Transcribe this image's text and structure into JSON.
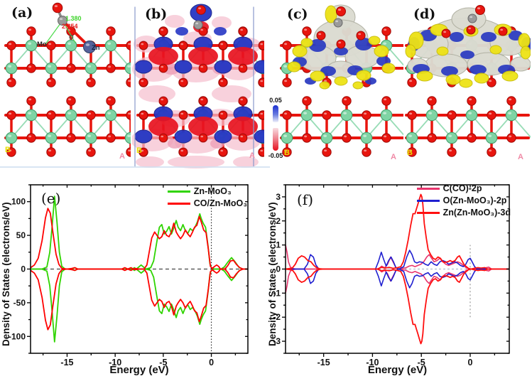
{
  "panels": {
    "a": {
      "label": "(a)",
      "atoms": {
        "mo": "Mo",
        "zn": "Zn",
        "o": "O"
      },
      "bonds": {
        "c_o": "1.380",
        "zn_c": "2.354"
      },
      "corners": {
        "b": "B",
        "a": "A"
      }
    },
    "b": {
      "label": "(b)",
      "colorbar": {
        "max": "0.05",
        "min": "-0.05"
      },
      "corners": {
        "b": "B",
        "a": "A"
      }
    },
    "c": {
      "label": "(c)",
      "corners": {
        "b": "B",
        "a": "A"
      }
    },
    "d": {
      "label": "(d)",
      "corners": {
        "b": "B",
        "a": "A"
      }
    }
  },
  "palette": {
    "mo_atom": "#7fd4a4",
    "mo_stroke": "#3f9e6b",
    "o_atom": "#e8150e",
    "o_stroke": "#a00a06",
    "c_atom": "#9a9a9a",
    "c_stroke": "#686868",
    "zn_atom": "#55639b",
    "zn_stroke": "#313f63",
    "charge_accumulation": "#2636c4",
    "charge_depletion": "#e81320",
    "contour_pink": "#f5bfcf",
    "isosurface_gray": "#dbdbd1",
    "isosurface_yellow": "#eee316",
    "isosurface_blue": "#2838c0",
    "frame_blue": "#8899cc"
  },
  "chart_data": [
    {
      "id": "e",
      "type": "line",
      "panel_label": "(e)",
      "xlabel": "Energy (eV)",
      "ylabel": "Density of States (electrons/eV)",
      "xlim": [
        -18.8,
        3.8
      ],
      "ylim": [
        -125,
        125
      ],
      "xticks": [
        -15,
        -10,
        -5,
        0
      ],
      "xminor_step": 2.5,
      "yticks": [
        -100,
        -50,
        0,
        50,
        100
      ],
      "yminor_step": 25,
      "grid": false,
      "legend_position": "top-right",
      "mirrored_spin": true,
      "ref_lines": [
        {
          "orient": "h",
          "at": 0,
          "from": -17.4,
          "to": 3.6,
          "dash": "5 4",
          "color": "#222222",
          "width": 1
        },
        {
          "orient": "v",
          "at": 0,
          "from": -122,
          "to": 122,
          "dash": "1.5 2.5",
          "color": "#222222",
          "width": 1.2
        }
      ],
      "series": [
        {
          "name": "Zn-MoO₃",
          "color": "#2fd400",
          "width": 1.8,
          "x": [
            -18.8,
            -17.6,
            -17.1,
            -16.8,
            -16.55,
            -16.3,
            -16.05,
            -15.8,
            -15.55,
            -15.2,
            -14.5,
            -14.2,
            -13.9,
            -13.0,
            -9.3,
            -9.0,
            -8.7,
            -8.2,
            -8.0,
            -7.8,
            -7.55,
            -7.3,
            -7.05,
            -6.8,
            -6.3,
            -6.0,
            -5.7,
            -5.4,
            -5.15,
            -4.9,
            -4.65,
            -4.4,
            -4.15,
            -3.9,
            -3.65,
            -3.45,
            -3.2,
            -2.95,
            -2.7,
            -2.45,
            -2.2,
            -1.95,
            -1.7,
            -1.45,
            -1.2,
            -1.05,
            -0.85,
            -0.6,
            -0.35,
            -0.15,
            0.0,
            0.3,
            1.0,
            1.35,
            1.7,
            2.1,
            2.5,
            2.85,
            3.2,
            3.8
          ],
          "y": [
            0,
            0,
            3,
            25,
            65,
            108,
            70,
            25,
            4,
            0,
            0,
            2,
            0,
            0,
            0,
            1.5,
            0,
            0,
            2,
            0,
            3,
            6,
            3,
            0,
            2,
            12,
            38,
            62,
            66,
            52,
            56,
            63,
            52,
            61,
            72,
            62,
            57,
            66,
            57,
            53,
            60,
            57,
            62,
            70,
            82,
            75,
            68,
            62,
            35,
            8,
            2,
            0,
            0,
            3,
            10,
            17,
            10,
            3,
            0,
            0
          ]
        },
        {
          "name": "CO/Zn-MoO₃",
          "color": "#ff0000",
          "width": 1.8,
          "x": [
            -18.8,
            -18.4,
            -18.0,
            -17.6,
            -17.25,
            -17.0,
            -16.75,
            -16.45,
            -16.15,
            -15.85,
            -15.55,
            -15.0,
            -14.5,
            -14.2,
            -13.9,
            -13.0,
            -9.3,
            -9.0,
            -8.7,
            -8.35,
            -8.1,
            -7.9,
            -7.5,
            -7.0,
            -6.7,
            -6.45,
            -6.2,
            -5.9,
            -5.65,
            -5.4,
            -5.15,
            -4.9,
            -4.65,
            -4.4,
            -4.15,
            -3.9,
            -3.65,
            -3.45,
            -3.2,
            -2.95,
            -2.7,
            -2.45,
            -2.2,
            -1.95,
            -1.75,
            -1.5,
            -1.25,
            -1.05,
            -0.8,
            -0.55,
            -0.3,
            -0.1,
            0.1,
            0.35,
            0.55,
            0.75,
            0.95,
            1.4,
            1.7,
            2.0,
            2.3,
            2.6,
            2.95,
            3.3,
            3.8
          ],
          "y": [
            2,
            6,
            16,
            42,
            76,
            90,
            83,
            52,
            22,
            7,
            1,
            0,
            1,
            2,
            0,
            0,
            0,
            2,
            0,
            2,
            0,
            1,
            0,
            0,
            6,
            26,
            46,
            55,
            50,
            45,
            48,
            57,
            50,
            48,
            55,
            68,
            55,
            50,
            45,
            50,
            58,
            52,
            48,
            55,
            62,
            65,
            78,
            70,
            58,
            54,
            28,
            4,
            1,
            4,
            6,
            4,
            0,
            0,
            5,
            12,
            13,
            7,
            2,
            0,
            0
          ]
        }
      ]
    },
    {
      "id": "f",
      "type": "line",
      "panel_label": "(f)",
      "xlabel": "Energy (eV)",
      "ylabel": "Density of States (electrons/eV)",
      "xlim": [
        -18.9,
        4.0
      ],
      "ylim": [
        -3.5,
        3.5
      ],
      "xticks": [
        -15,
        -10,
        -5,
        0
      ],
      "xminor_step": 2.5,
      "yticks": [
        -3,
        -2,
        -1,
        0,
        1,
        2,
        3
      ],
      "yminor_step": 0.5,
      "grid": false,
      "legend_position": "top-right",
      "mirrored_spin": true,
      "ref_lines": [
        {
          "orient": "h",
          "at": 0,
          "from": -18.9,
          "to": 0.3,
          "dash": "3 3",
          "color": "#9fb0c8",
          "width": 1
        },
        {
          "orient": "v",
          "at": 0,
          "from": -2.0,
          "to": 1.0,
          "dash": "2 3",
          "color": "#999999",
          "width": 1.2
        }
      ],
      "series": [
        {
          "name": "C(CO)-2p",
          "color": "#e8356d",
          "width": 1.6,
          "x": [
            -18.9,
            -18.75,
            -18.6,
            -18.4,
            -18.1,
            -17.8,
            -9.4,
            -9.05,
            -8.75,
            -8.45,
            -8.15,
            -7.9,
            -7.6,
            -7.3,
            -6.6,
            -6.25,
            -5.95,
            -5.65,
            -5.35,
            -5.05,
            -4.75,
            -4.45,
            -4.2,
            -3.95,
            -3.7,
            -3.4,
            -3.1,
            -2.8,
            -2.5,
            -2.2,
            -1.9,
            -1.6,
            -1.3,
            -1.0,
            -0.7,
            -0.4,
            -0.15,
            0.1,
            1.4,
            1.65,
            1.9,
            2.2,
            4.0
          ],
          "y": [
            1.0,
            0.7,
            0.3,
            0.08,
            0.02,
            0,
            0,
            0.12,
            0.05,
            0.2,
            0.5,
            0.3,
            0.06,
            0,
            0.05,
            0.12,
            0.15,
            0.1,
            0.15,
            0.2,
            0.3,
            0.5,
            0.6,
            0.45,
            0.3,
            0.35,
            0.45,
            0.3,
            0.2,
            0.15,
            0.2,
            0.25,
            0.3,
            0.25,
            0.15,
            0.05,
            0.02,
            0,
            0,
            0.06,
            0.08,
            0,
            0
          ]
        },
        {
          "name": "O(Zn-MoO₃)-2p",
          "color": "#1f1fd0",
          "width": 1.6,
          "x": [
            -18.9,
            -17.0,
            -16.65,
            -16.35,
            -16.05,
            -15.8,
            -15.5,
            -9.7,
            -9.4,
            -9.1,
            -8.85,
            -8.6,
            -8.35,
            -8.1,
            -7.85,
            -7.6,
            -7.3,
            -6.8,
            -6.5,
            -6.2,
            -5.95,
            -5.7,
            -5.45,
            -5.2,
            -4.9,
            -4.6,
            -4.3,
            -4.0,
            -3.7,
            -3.4,
            -3.1,
            -2.8,
            -2.5,
            -2.2,
            -1.9,
            -1.6,
            -1.3,
            -1.0,
            -0.7,
            -0.45,
            -0.2,
            0.0,
            0.2,
            0.45,
            0.7,
            4.0
          ],
          "y": [
            0,
            0,
            0.2,
            0.6,
            0.5,
            0.18,
            0,
            0,
            0.3,
            0.7,
            0.4,
            0.12,
            0.35,
            0.5,
            0.3,
            0.06,
            0,
            0.1,
            0.5,
            0.78,
            0.6,
            0.3,
            0.25,
            0.3,
            0.28,
            0.2,
            0.15,
            0.3,
            0.2,
            0.15,
            0.3,
            0.35,
            0.3,
            0.2,
            0.25,
            0.3,
            0.25,
            0.15,
            0.1,
            0.2,
            0.4,
            0.45,
            0.3,
            0.1,
            0,
            0
          ]
        },
        {
          "name": "Zn(Zn-MoO₃)-3d",
          "color": "#ff0f0f",
          "width": 1.8,
          "x": [
            -18.9,
            -18.2,
            -17.9,
            -17.6,
            -17.25,
            -16.95,
            -16.6,
            -16.3,
            -16.0,
            -15.7,
            -15.35,
            -15.0,
            -9.5,
            -9.1,
            -8.7,
            -8.3,
            -7.9,
            -7.5,
            -7.1,
            -6.85,
            -6.6,
            -6.35,
            -6.1,
            -5.85,
            -5.65,
            -5.5,
            -5.35,
            -5.2,
            -5.05,
            -4.95,
            -4.85,
            -4.7,
            -4.5,
            -4.3,
            -4.05,
            -3.8,
            -3.55,
            -3.3,
            -3.05,
            -2.8,
            -2.55,
            -2.3,
            -2.05,
            -1.8,
            -1.55,
            -1.3,
            -1.1,
            -0.9,
            -0.65,
            -0.4,
            -0.15,
            0.1,
            0.5,
            0.8,
            1.1,
            1.5,
            1.8,
            4.0
          ],
          "y": [
            0,
            0.04,
            0.2,
            0.45,
            0.55,
            0.5,
            0.35,
            0.3,
            0.15,
            0.05,
            0.01,
            0,
            0,
            0.07,
            0.04,
            0.07,
            0.03,
            0.05,
            0.1,
            0.3,
            0.7,
            1.2,
            1.8,
            2.3,
            2.3,
            2.5,
            2.7,
            2.9,
            3.1,
            3.0,
            2.7,
            1.9,
            1.3,
            0.8,
            0.6,
            0.45,
            0.4,
            0.5,
            0.45,
            0.3,
            0.28,
            0.3,
            0.35,
            0.3,
            0.35,
            0.5,
            0.55,
            0.4,
            0.2,
            0.1,
            0.02,
            0,
            0.04,
            0.06,
            0.04,
            0.06,
            0,
            0
          ]
        }
      ]
    }
  ]
}
